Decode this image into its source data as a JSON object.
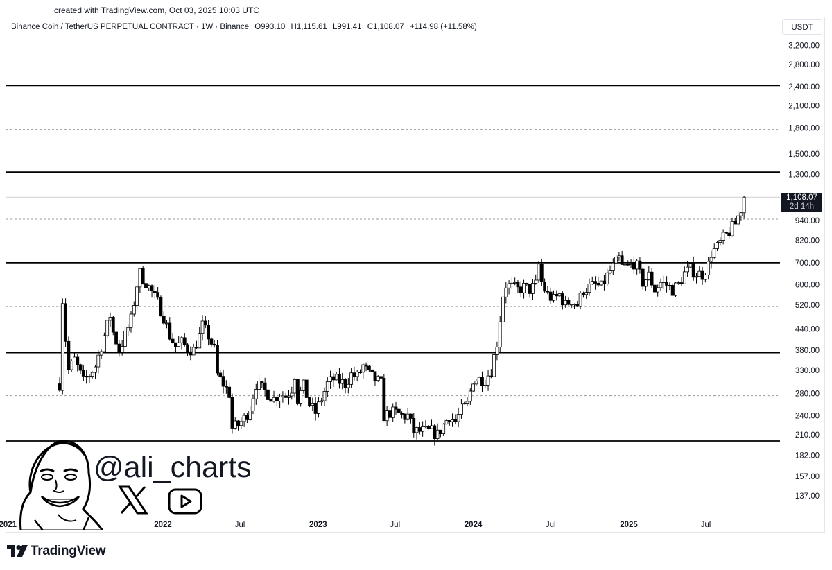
{
  "created_text": "created with TradingView.com, Oct 03, 2025 10:03 UTC",
  "symbol": {
    "name": "Binance Coin / TetherUS PERPETUAL CONTRACT · 1W · Binance",
    "open": "O993.10",
    "high": "H1,115.61",
    "low": "L991.41",
    "close": "C1,108.07",
    "change": "+114.98 (+11.58%)"
  },
  "currency": "USDT",
  "last_price": {
    "value": "1,108.07",
    "countdown": "2d 14h"
  },
  "handle": "@ali_charts",
  "brand": "TradingView",
  "icons": {
    "x": "x-logo-icon",
    "youtube": "youtube-play-icon",
    "avatar": "caricature-avatar",
    "logo": "tradingview-logo-icon"
  },
  "colors": {
    "up": "#ffffff",
    "down": "#000000",
    "wick": "#000000",
    "level": "#000000"
  },
  "chart_data": {
    "type": "candlestick",
    "scale": "log",
    "y_ticks": [
      "3,200.00",
      "2,800.00",
      "2,400.00",
      "2,100.00",
      "1,800.00",
      "1,500.00",
      "1,300.00",
      "940.00",
      "820.00",
      "700.00",
      "600.00",
      "520.00",
      "440.00",
      "380.00",
      "330.00",
      "280.00",
      "240.00",
      "210.00",
      "182.00",
      "157.00",
      "137.00"
    ],
    "y_tick_values": [
      3200,
      2800,
      2400,
      2100,
      1800,
      1500,
      1300,
      940,
      820,
      700,
      600,
      520,
      440,
      380,
      330,
      280,
      240,
      210,
      182,
      157,
      137
    ],
    "x_ticks": [
      "2021",
      "Jul",
      "2022",
      "Jul",
      "2023",
      "Jul",
      "2024",
      "Jul",
      "2025",
      "Jul"
    ],
    "x_tick_dates": [
      "2021-01-01",
      "2021-07-01",
      "2022-01-01",
      "2022-07-01",
      "2023-01-01",
      "2023-07-01",
      "2024-01-01",
      "2024-07-01",
      "2025-01-01",
      "2025-07-01"
    ],
    "levels_solid": [
      2420,
      1320,
      700,
      373,
      201
    ],
    "levels_dotted": [
      1780,
      950,
      515,
      276
    ],
    "last_close": 1108.07,
    "anchors": [
      [
        "2021-05-03",
        300,
        660
      ],
      [
        "2021-05-10",
        540,
        660
      ],
      [
        "2021-05-17",
        410,
        300
      ],
      [
        "2021-05-24",
        330,
        260
      ],
      [
        "2021-06-07",
        355,
        285
      ],
      [
        "2021-06-28",
        305,
        255
      ],
      [
        "2021-07-12",
        320,
        280
      ],
      [
        "2021-07-26",
        340,
        300
      ],
      [
        "2021-08-16",
        420,
        380
      ],
      [
        "2021-08-30",
        485,
        440
      ],
      [
        "2021-09-06",
        430,
        390
      ],
      [
        "2021-09-20",
        380,
        350
      ],
      [
        "2021-10-04",
        420,
        390
      ],
      [
        "2021-10-18",
        470,
        440
      ],
      [
        "2021-11-01",
        600,
        560
      ],
      [
        "2021-11-08",
        650,
        610
      ],
      [
        "2021-11-22",
        610,
        570
      ],
      [
        "2021-12-06",
        570,
        540
      ],
      [
        "2021-12-20",
        530,
        500
      ],
      [
        "2022-01-03",
        480,
        440
      ],
      [
        "2022-01-17",
        420,
        380
      ],
      [
        "2022-01-31",
        390,
        360
      ],
      [
        "2022-02-14",
        400,
        380
      ],
      [
        "2022-02-28",
        385,
        365
      ],
      [
        "2022-03-14",
        380,
        360
      ],
      [
        "2022-03-28",
        420,
        400
      ],
      [
        "2022-04-04",
        450,
        430
      ],
      [
        "2022-04-18",
        420,
        400
      ],
      [
        "2022-05-02",
        380,
        360
      ],
      [
        "2022-05-09",
        320,
        300
      ],
      [
        "2022-05-23",
        300,
        290
      ],
      [
        "2022-06-06",
        280,
        270
      ],
      [
        "2022-06-13",
        220,
        210
      ],
      [
        "2022-06-27",
        225,
        215
      ],
      [
        "2022-07-11",
        235,
        225
      ],
      [
        "2022-07-25",
        255,
        245
      ],
      [
        "2022-08-08",
        300,
        290
      ],
      [
        "2022-08-22",
        290,
        280
      ],
      [
        "2022-09-05",
        280,
        270
      ],
      [
        "2022-09-19",
        270,
        265
      ],
      [
        "2022-10-03",
        280,
        275
      ],
      [
        "2022-10-17",
        275,
        270
      ],
      [
        "2022-10-31",
        290,
        285
      ],
      [
        "2022-11-07",
        320,
        300
      ],
      [
        "2022-11-14",
        270,
        260
      ],
      [
        "2022-11-28",
        295,
        285
      ],
      [
        "2022-12-12",
        260,
        245
      ],
      [
        "2022-12-26",
        245,
        240
      ],
      [
        "2023-01-09",
        270,
        260
      ],
      [
        "2023-01-23",
        300,
        290
      ],
      [
        "2023-02-06",
        310,
        300
      ],
      [
        "2023-02-20",
        305,
        300
      ],
      [
        "2023-03-06",
        300,
        290
      ],
      [
        "2023-03-20",
        320,
        310
      ],
      [
        "2023-04-03",
        315,
        310
      ],
      [
        "2023-04-17",
        340,
        330
      ],
      [
        "2023-05-01",
        320,
        315
      ],
      [
        "2023-05-15",
        310,
        305
      ],
      [
        "2023-05-29",
        300,
        295
      ],
      [
        "2023-06-05",
        240,
        235
      ],
      [
        "2023-06-19",
        245,
        240
      ],
      [
        "2023-07-03",
        245,
        240
      ],
      [
        "2023-07-17",
        240,
        235
      ],
      [
        "2023-07-31",
        240,
        235
      ],
      [
        "2023-08-14",
        215,
        210
      ],
      [
        "2023-08-28",
        215,
        210
      ],
      [
        "2023-09-11",
        215,
        210
      ],
      [
        "2023-09-25",
        215,
        210
      ],
      [
        "2023-10-09",
        210,
        205
      ],
      [
        "2023-10-23",
        225,
        220
      ],
      [
        "2023-11-06",
        240,
        235
      ],
      [
        "2023-11-20",
        230,
        225
      ],
      [
        "2023-12-04",
        250,
        240
      ],
      [
        "2023-12-18",
        260,
        255
      ],
      [
        "2024-01-01",
        310,
        300
      ],
      [
        "2024-01-15",
        310,
        305
      ],
      [
        "2024-01-29",
        310,
        305
      ],
      [
        "2024-02-12",
        330,
        320
      ],
      [
        "2024-02-26",
        400,
        380
      ],
      [
        "2024-03-11",
        560,
        540
      ],
      [
        "2024-03-18",
        600,
        580
      ],
      [
        "2024-04-01",
        590,
        570
      ],
      [
        "2024-04-15",
        580,
        570
      ],
      [
        "2024-04-29",
        590,
        580
      ],
      [
        "2024-05-13",
        580,
        575
      ],
      [
        "2024-05-27",
        600,
        590
      ],
      [
        "2024-06-03",
        690,
        650
      ],
      [
        "2024-06-10",
        610,
        600
      ],
      [
        "2024-06-17",
        580,
        570
      ],
      [
        "2024-06-24",
        560,
        550
      ],
      [
        "2024-07-08",
        540,
        520
      ],
      [
        "2024-07-22",
        560,
        540
      ],
      [
        "2024-08-05",
        520,
        500
      ],
      [
        "2024-08-19",
        540,
        530
      ],
      [
        "2024-09-02",
        520,
        510
      ],
      [
        "2024-09-16",
        580,
        560
      ],
      [
        "2024-09-30",
        590,
        580
      ],
      [
        "2024-10-14",
        600,
        590
      ],
      [
        "2024-10-28",
        590,
        580
      ],
      [
        "2024-11-11",
        640,
        620
      ],
      [
        "2024-11-25",
        680,
        650
      ],
      [
        "2024-12-02",
        700,
        690
      ],
      [
        "2024-12-09",
        720,
        700
      ],
      [
        "2024-12-16",
        680,
        670
      ],
      [
        "2024-12-30",
        680,
        670
      ],
      [
        "2025-01-13",
        700,
        680
      ],
      [
        "2025-01-20",
        680,
        660
      ],
      [
        "2025-02-03",
        610,
        590
      ],
      [
        "2025-02-17",
        640,
        620
      ],
      [
        "2025-03-03",
        580,
        560
      ],
      [
        "2025-03-17",
        610,
        600
      ],
      [
        "2025-03-31",
        600,
        580
      ],
      [
        "2025-04-14",
        580,
        570
      ],
      [
        "2025-04-28",
        600,
        590
      ],
      [
        "2025-05-12",
        650,
        640
      ],
      [
        "2025-05-26",
        670,
        660
      ],
      [
        "2025-06-09",
        650,
        640
      ],
      [
        "2025-06-23",
        645,
        630
      ],
      [
        "2025-07-07",
        690,
        680
      ],
      [
        "2025-07-14",
        750,
        730
      ],
      [
        "2025-07-28",
        780,
        770
      ],
      [
        "2025-08-11",
        830,
        820
      ],
      [
        "2025-08-25",
        870,
        860
      ],
      [
        "2025-09-08",
        920,
        900
      ],
      [
        "2025-09-22",
        1020,
        993
      ],
      [
        "2025-09-29",
        1108.07,
        1110
      ]
    ]
  }
}
